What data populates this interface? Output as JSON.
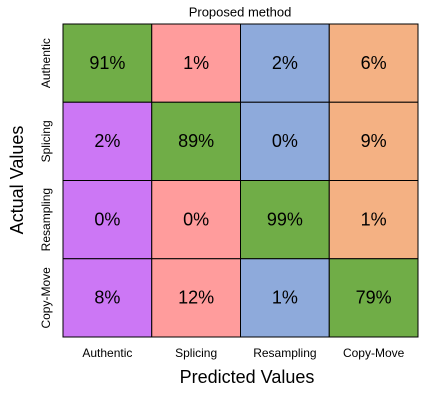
{
  "chart_data": {
    "type": "heatmap",
    "title": "Proposed method",
    "xlabel": "Predicted Values",
    "ylabel": "Actual Values",
    "x_categories": [
      "Authentic",
      "Splicing",
      "Resampling",
      "Copy-Move"
    ],
    "y_categories": [
      "Authentic",
      "Splicing",
      "Resampling",
      "Copy-Move"
    ],
    "values": [
      [
        91,
        1,
        2,
        6
      ],
      [
        2,
        89,
        0,
        9
      ],
      [
        0,
        0,
        99,
        1
      ],
      [
        8,
        12,
        1,
        79
      ]
    ],
    "value_labels": [
      [
        "91%",
        "1%",
        "2%",
        "6%"
      ],
      [
        "2%",
        "89%",
        "0%",
        "9%"
      ],
      [
        "0%",
        "0%",
        "99%",
        "1%"
      ],
      [
        "8%",
        "12%",
        "1%",
        "79%"
      ]
    ],
    "colors": [
      "#cc77f5",
      "#ff9c9c",
      "#8eaadb",
      "#f4b183"
    ],
    "diagonal_color": "#70ad47"
  }
}
